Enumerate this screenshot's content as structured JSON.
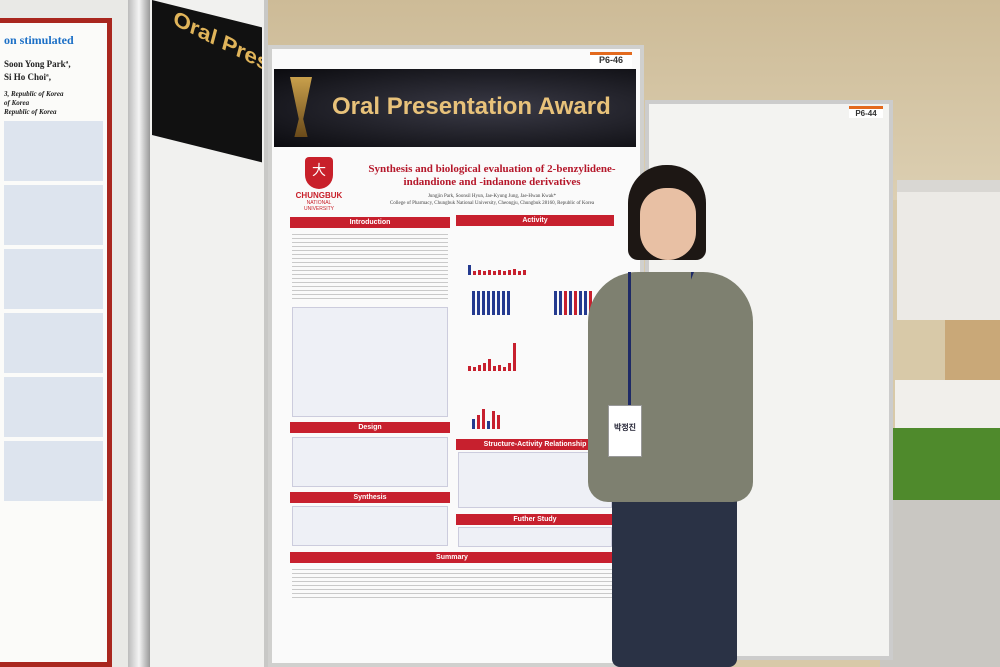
{
  "scene": "poster session",
  "left_poster": {
    "title_fragment": "on stimulated",
    "authors": [
      "Soon Yong Parkª,",
      "Si Ho Choiª,"
    ],
    "affiliations": [
      "3, Republic of Korea",
      "of Korea",
      "Republic of Korea"
    ]
  },
  "side_banner": "Oral Presentation Award",
  "poster": {
    "code": "P6-46",
    "banner": "Oral Presentation Award",
    "university_name": "CHUNGBUK",
    "university_sub": "NATIONAL UNIVERSITY",
    "title": "Synthesis and biological evaluation of 2-benzylidene-indandione and -indanone derivatives",
    "authors": "Jungjin Park, Soonsil Hyun, Jae-Kyung Jung, Jae-Hwan Kwak*",
    "affiliation": "College of Pharmacy, Chungbuk National University, Cheongju, Chungbuk 28160, Republic of Korea",
    "sections": {
      "introduction": "Introduction",
      "activity": "Activity",
      "design": "Design",
      "synthesis": "Synthesis",
      "sar": "Structure-Activity Relationship",
      "further": "Futher Study",
      "summary": "Summary"
    }
  },
  "right_poster": {
    "code": "P6-44"
  },
  "name_badge": "박정진",
  "colors": {
    "poster_accent": "#c7202e",
    "left_poster_border": "#a9271f",
    "award_gold": "#e8c27a"
  }
}
